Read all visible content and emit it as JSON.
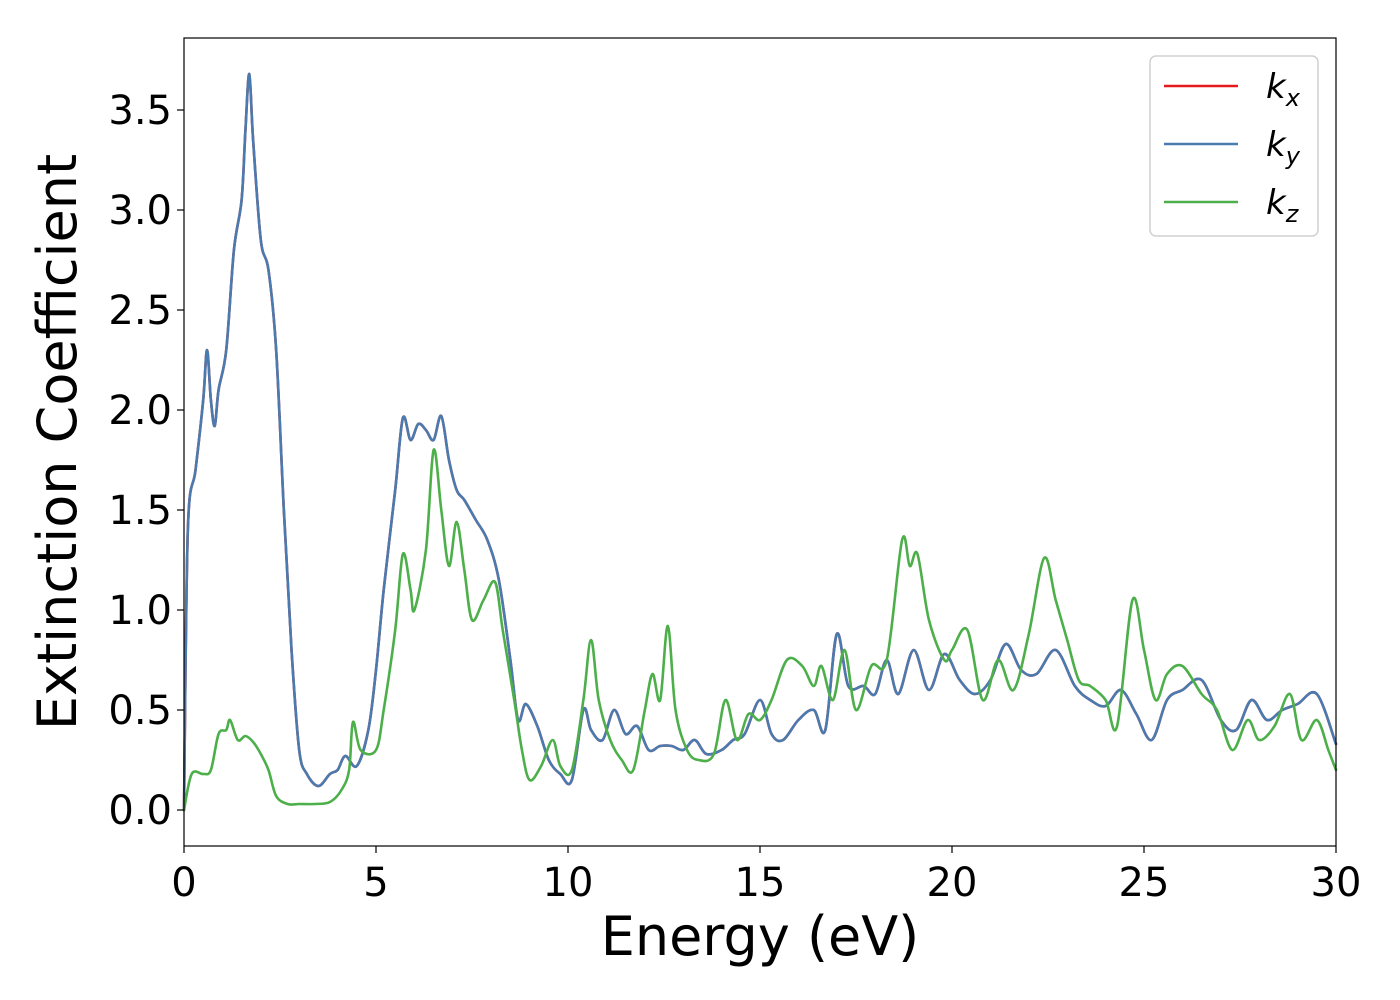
{
  "chart_data": {
    "type": "line",
    "title": "",
    "xlabel": "Energy (eV)",
    "ylabel": "Extinction Coefficient",
    "xlim": [
      0,
      30
    ],
    "ylim": [
      -0.18,
      3.86
    ],
    "xticks": [
      "0",
      "5",
      "10",
      "15",
      "20",
      "25",
      "30"
    ],
    "yticks": [
      "0.0",
      "0.5",
      "1.0",
      "1.5",
      "2.0",
      "2.5",
      "3.0",
      "3.5"
    ],
    "grid": false,
    "legend_position": "top-right",
    "series": [
      {
        "name": "k",
        "subscript": "x",
        "color": "#e41a1c",
        "points": [
          [
            0,
            0.0
          ],
          [
            0.1,
            1.4
          ],
          [
            0.3,
            1.7
          ],
          [
            0.5,
            2.05
          ],
          [
            0.6,
            2.3
          ],
          [
            0.7,
            2.05
          ],
          [
            0.8,
            1.92
          ],
          [
            0.9,
            2.1
          ],
          [
            1.1,
            2.3
          ],
          [
            1.3,
            2.8
          ],
          [
            1.5,
            3.05
          ],
          [
            1.6,
            3.4
          ],
          [
            1.7,
            3.68
          ],
          [
            1.8,
            3.35
          ],
          [
            2.0,
            2.85
          ],
          [
            2.2,
            2.7
          ],
          [
            2.4,
            2.3
          ],
          [
            2.6,
            1.5
          ],
          [
            2.8,
            0.8
          ],
          [
            3.0,
            0.3
          ],
          [
            3.2,
            0.18
          ],
          [
            3.5,
            0.12
          ],
          [
            3.8,
            0.18
          ],
          [
            4.0,
            0.2
          ],
          [
            4.2,
            0.27
          ],
          [
            4.5,
            0.22
          ],
          [
            4.8,
            0.4
          ],
          [
            5.0,
            0.7
          ],
          [
            5.2,
            1.1
          ],
          [
            5.5,
            1.6
          ],
          [
            5.7,
            1.96
          ],
          [
            5.9,
            1.85
          ],
          [
            6.1,
            1.93
          ],
          [
            6.3,
            1.9
          ],
          [
            6.5,
            1.85
          ],
          [
            6.7,
            1.97
          ],
          [
            6.9,
            1.75
          ],
          [
            7.1,
            1.6
          ],
          [
            7.3,
            1.55
          ],
          [
            7.6,
            1.45
          ],
          [
            7.9,
            1.35
          ],
          [
            8.2,
            1.15
          ],
          [
            8.5,
            0.75
          ],
          [
            8.7,
            0.45
          ],
          [
            8.9,
            0.53
          ],
          [
            9.2,
            0.42
          ],
          [
            9.5,
            0.25
          ],
          [
            9.8,
            0.18
          ],
          [
            10.1,
            0.15
          ],
          [
            10.4,
            0.5
          ],
          [
            10.6,
            0.4
          ],
          [
            10.9,
            0.35
          ],
          [
            11.2,
            0.5
          ],
          [
            11.5,
            0.38
          ],
          [
            11.8,
            0.42
          ],
          [
            12.1,
            0.3
          ],
          [
            12.4,
            0.32
          ],
          [
            12.7,
            0.32
          ],
          [
            13.0,
            0.3
          ],
          [
            13.3,
            0.35
          ],
          [
            13.6,
            0.28
          ],
          [
            14.0,
            0.3
          ],
          [
            14.3,
            0.35
          ],
          [
            14.6,
            0.38
          ],
          [
            15.0,
            0.55
          ],
          [
            15.3,
            0.38
          ],
          [
            15.6,
            0.35
          ],
          [
            16.0,
            0.45
          ],
          [
            16.4,
            0.5
          ],
          [
            16.7,
            0.4
          ],
          [
            17.0,
            0.88
          ],
          [
            17.3,
            0.62
          ],
          [
            17.7,
            0.62
          ],
          [
            18.0,
            0.58
          ],
          [
            18.3,
            0.75
          ],
          [
            18.6,
            0.58
          ],
          [
            19.0,
            0.8
          ],
          [
            19.4,
            0.6
          ],
          [
            19.8,
            0.78
          ],
          [
            20.2,
            0.65
          ],
          [
            20.6,
            0.58
          ],
          [
            21.0,
            0.65
          ],
          [
            21.4,
            0.83
          ],
          [
            21.8,
            0.7
          ],
          [
            22.2,
            0.68
          ],
          [
            22.7,
            0.8
          ],
          [
            23.2,
            0.62
          ],
          [
            23.6,
            0.55
          ],
          [
            24.0,
            0.52
          ],
          [
            24.4,
            0.6
          ],
          [
            24.8,
            0.48
          ],
          [
            25.2,
            0.35
          ],
          [
            25.6,
            0.55
          ],
          [
            26.0,
            0.6
          ],
          [
            26.5,
            0.65
          ],
          [
            27.0,
            0.45
          ],
          [
            27.4,
            0.4
          ],
          [
            27.8,
            0.55
          ],
          [
            28.2,
            0.45
          ],
          [
            28.6,
            0.5
          ],
          [
            29.0,
            0.53
          ],
          [
            29.5,
            0.58
          ],
          [
            30.0,
            0.33
          ]
        ]
      },
      {
        "name": "k",
        "subscript": "y",
        "color": "#4a7bb0",
        "points": [
          [
            0,
            0.0
          ],
          [
            0.1,
            1.4
          ],
          [
            0.3,
            1.7
          ],
          [
            0.5,
            2.05
          ],
          [
            0.6,
            2.3
          ],
          [
            0.7,
            2.05
          ],
          [
            0.8,
            1.92
          ],
          [
            0.9,
            2.1
          ],
          [
            1.1,
            2.3
          ],
          [
            1.3,
            2.8
          ],
          [
            1.5,
            3.05
          ],
          [
            1.6,
            3.4
          ],
          [
            1.7,
            3.68
          ],
          [
            1.8,
            3.35
          ],
          [
            2.0,
            2.85
          ],
          [
            2.2,
            2.7
          ],
          [
            2.4,
            2.3
          ],
          [
            2.6,
            1.5
          ],
          [
            2.8,
            0.8
          ],
          [
            3.0,
            0.3
          ],
          [
            3.2,
            0.18
          ],
          [
            3.5,
            0.12
          ],
          [
            3.8,
            0.18
          ],
          [
            4.0,
            0.2
          ],
          [
            4.2,
            0.27
          ],
          [
            4.5,
            0.22
          ],
          [
            4.8,
            0.4
          ],
          [
            5.0,
            0.7
          ],
          [
            5.2,
            1.1
          ],
          [
            5.5,
            1.6
          ],
          [
            5.7,
            1.96
          ],
          [
            5.9,
            1.85
          ],
          [
            6.1,
            1.93
          ],
          [
            6.3,
            1.9
          ],
          [
            6.5,
            1.85
          ],
          [
            6.7,
            1.97
          ],
          [
            6.9,
            1.75
          ],
          [
            7.1,
            1.6
          ],
          [
            7.3,
            1.55
          ],
          [
            7.6,
            1.45
          ],
          [
            7.9,
            1.35
          ],
          [
            8.2,
            1.15
          ],
          [
            8.5,
            0.75
          ],
          [
            8.7,
            0.45
          ],
          [
            8.9,
            0.53
          ],
          [
            9.2,
            0.42
          ],
          [
            9.5,
            0.25
          ],
          [
            9.8,
            0.18
          ],
          [
            10.1,
            0.15
          ],
          [
            10.4,
            0.5
          ],
          [
            10.6,
            0.4
          ],
          [
            10.9,
            0.35
          ],
          [
            11.2,
            0.5
          ],
          [
            11.5,
            0.38
          ],
          [
            11.8,
            0.42
          ],
          [
            12.1,
            0.3
          ],
          [
            12.4,
            0.32
          ],
          [
            12.7,
            0.32
          ],
          [
            13.0,
            0.3
          ],
          [
            13.3,
            0.35
          ],
          [
            13.6,
            0.28
          ],
          [
            14.0,
            0.3
          ],
          [
            14.3,
            0.35
          ],
          [
            14.6,
            0.38
          ],
          [
            15.0,
            0.55
          ],
          [
            15.3,
            0.38
          ],
          [
            15.6,
            0.35
          ],
          [
            16.0,
            0.45
          ],
          [
            16.4,
            0.5
          ],
          [
            16.7,
            0.4
          ],
          [
            17.0,
            0.88
          ],
          [
            17.3,
            0.62
          ],
          [
            17.7,
            0.62
          ],
          [
            18.0,
            0.58
          ],
          [
            18.3,
            0.75
          ],
          [
            18.6,
            0.58
          ],
          [
            19.0,
            0.8
          ],
          [
            19.4,
            0.6
          ],
          [
            19.8,
            0.78
          ],
          [
            20.2,
            0.65
          ],
          [
            20.6,
            0.58
          ],
          [
            21.0,
            0.65
          ],
          [
            21.4,
            0.83
          ],
          [
            21.8,
            0.7
          ],
          [
            22.2,
            0.68
          ],
          [
            22.7,
            0.8
          ],
          [
            23.2,
            0.62
          ],
          [
            23.6,
            0.55
          ],
          [
            24.0,
            0.52
          ],
          [
            24.4,
            0.6
          ],
          [
            24.8,
            0.48
          ],
          [
            25.2,
            0.35
          ],
          [
            25.6,
            0.55
          ],
          [
            26.0,
            0.6
          ],
          [
            26.5,
            0.65
          ],
          [
            27.0,
            0.45
          ],
          [
            27.4,
            0.4
          ],
          [
            27.8,
            0.55
          ],
          [
            28.2,
            0.45
          ],
          [
            28.6,
            0.5
          ],
          [
            29.0,
            0.53
          ],
          [
            29.5,
            0.58
          ],
          [
            30.0,
            0.33
          ]
        ]
      },
      {
        "name": "k",
        "subscript": "z",
        "color": "#4daf4a",
        "points": [
          [
            0,
            0.0
          ],
          [
            0.2,
            0.18
          ],
          [
            0.5,
            0.18
          ],
          [
            0.7,
            0.2
          ],
          [
            0.9,
            0.38
          ],
          [
            1.1,
            0.4
          ],
          [
            1.2,
            0.45
          ],
          [
            1.4,
            0.35
          ],
          [
            1.6,
            0.37
          ],
          [
            1.8,
            0.34
          ],
          [
            2.0,
            0.28
          ],
          [
            2.2,
            0.2
          ],
          [
            2.4,
            0.07
          ],
          [
            2.7,
            0.03
          ],
          [
            3.0,
            0.03
          ],
          [
            3.4,
            0.03
          ],
          [
            3.8,
            0.04
          ],
          [
            4.1,
            0.1
          ],
          [
            4.3,
            0.2
          ],
          [
            4.4,
            0.44
          ],
          [
            4.6,
            0.3
          ],
          [
            5.0,
            0.3
          ],
          [
            5.2,
            0.5
          ],
          [
            5.5,
            0.9
          ],
          [
            5.7,
            1.28
          ],
          [
            5.9,
            1.1
          ],
          [
            6.0,
            1.0
          ],
          [
            6.3,
            1.3
          ],
          [
            6.5,
            1.8
          ],
          [
            6.7,
            1.5
          ],
          [
            6.9,
            1.22
          ],
          [
            7.1,
            1.44
          ],
          [
            7.3,
            1.2
          ],
          [
            7.5,
            0.95
          ],
          [
            7.8,
            1.05
          ],
          [
            8.1,
            1.14
          ],
          [
            8.3,
            0.9
          ],
          [
            8.6,
            0.55
          ],
          [
            8.8,
            0.3
          ],
          [
            9.0,
            0.15
          ],
          [
            9.3,
            0.22
          ],
          [
            9.6,
            0.35
          ],
          [
            9.8,
            0.22
          ],
          [
            10.1,
            0.2
          ],
          [
            10.4,
            0.55
          ],
          [
            10.6,
            0.85
          ],
          [
            10.8,
            0.55
          ],
          [
            11.1,
            0.35
          ],
          [
            11.4,
            0.25
          ],
          [
            11.7,
            0.2
          ],
          [
            12.0,
            0.5
          ],
          [
            12.2,
            0.68
          ],
          [
            12.4,
            0.55
          ],
          [
            12.6,
            0.92
          ],
          [
            12.8,
            0.5
          ],
          [
            13.1,
            0.3
          ],
          [
            13.4,
            0.25
          ],
          [
            13.8,
            0.28
          ],
          [
            14.1,
            0.55
          ],
          [
            14.4,
            0.35
          ],
          [
            14.7,
            0.48
          ],
          [
            15.0,
            0.45
          ],
          [
            15.3,
            0.55
          ],
          [
            15.7,
            0.75
          ],
          [
            16.1,
            0.72
          ],
          [
            16.4,
            0.62
          ],
          [
            16.6,
            0.72
          ],
          [
            16.9,
            0.55
          ],
          [
            17.2,
            0.8
          ],
          [
            17.5,
            0.5
          ],
          [
            17.9,
            0.72
          ],
          [
            18.3,
            0.75
          ],
          [
            18.7,
            1.35
          ],
          [
            18.9,
            1.22
          ],
          [
            19.1,
            1.28
          ],
          [
            19.4,
            0.95
          ],
          [
            19.8,
            0.75
          ],
          [
            20.0,
            0.8
          ],
          [
            20.4,
            0.9
          ],
          [
            20.8,
            0.55
          ],
          [
            21.2,
            0.75
          ],
          [
            21.6,
            0.6
          ],
          [
            22.0,
            0.88
          ],
          [
            22.4,
            1.26
          ],
          [
            22.7,
            1.05
          ],
          [
            23.0,
            0.85
          ],
          [
            23.3,
            0.65
          ],
          [
            23.6,
            0.62
          ],
          [
            24.0,
            0.55
          ],
          [
            24.3,
            0.42
          ],
          [
            24.7,
            1.05
          ],
          [
            25.0,
            0.8
          ],
          [
            25.3,
            0.55
          ],
          [
            25.6,
            0.68
          ],
          [
            26.0,
            0.72
          ],
          [
            26.5,
            0.58
          ],
          [
            26.9,
            0.5
          ],
          [
            27.3,
            0.3
          ],
          [
            27.7,
            0.45
          ],
          [
            28.0,
            0.35
          ],
          [
            28.4,
            0.42
          ],
          [
            28.8,
            0.58
          ],
          [
            29.1,
            0.35
          ],
          [
            29.5,
            0.45
          ],
          [
            29.8,
            0.3
          ],
          [
            30.0,
            0.2
          ]
        ]
      }
    ]
  }
}
